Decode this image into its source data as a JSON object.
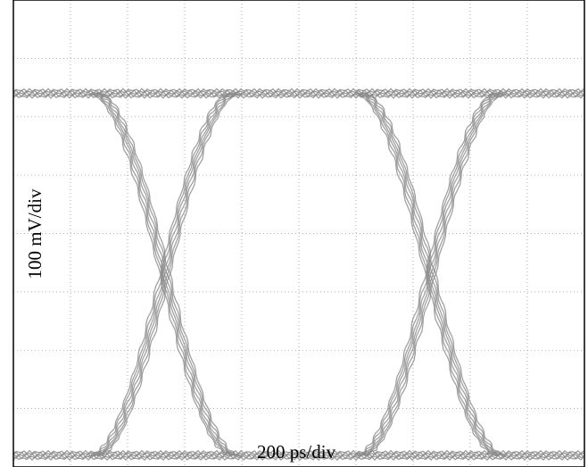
{
  "chart_data": {
    "type": "line",
    "subtype": "eye-diagram",
    "title": "",
    "xlabel": "200 ps/div",
    "ylabel": "100 mV/div",
    "x_divisions": 10,
    "y_divisions": 8,
    "grid": true,
    "grid_style": "dotted",
    "trace_color": "#8a8a8a",
    "levels": {
      "high_div": 1.6,
      "low_div": 7.8
    },
    "crossings_div": [
      2.65,
      7.3
    ],
    "transition_half_width_div": 1.25,
    "series": [
      {
        "name": "",
        "kind": "high-level",
        "x": [
          0,
          10
        ],
        "y": [
          1.6,
          1.6
        ]
      },
      {
        "name": "",
        "kind": "low-level",
        "x": [
          0,
          10
        ],
        "y": [
          7.8,
          7.8
        ]
      },
      {
        "name": "",
        "kind": "falling-edge",
        "center": 2.65
      },
      {
        "name": "",
        "kind": "rising-edge",
        "center": 2.65
      },
      {
        "name": "",
        "kind": "falling-edge",
        "center": 7.3
      },
      {
        "name": "",
        "kind": "rising-edge",
        "center": 7.3
      }
    ]
  }
}
